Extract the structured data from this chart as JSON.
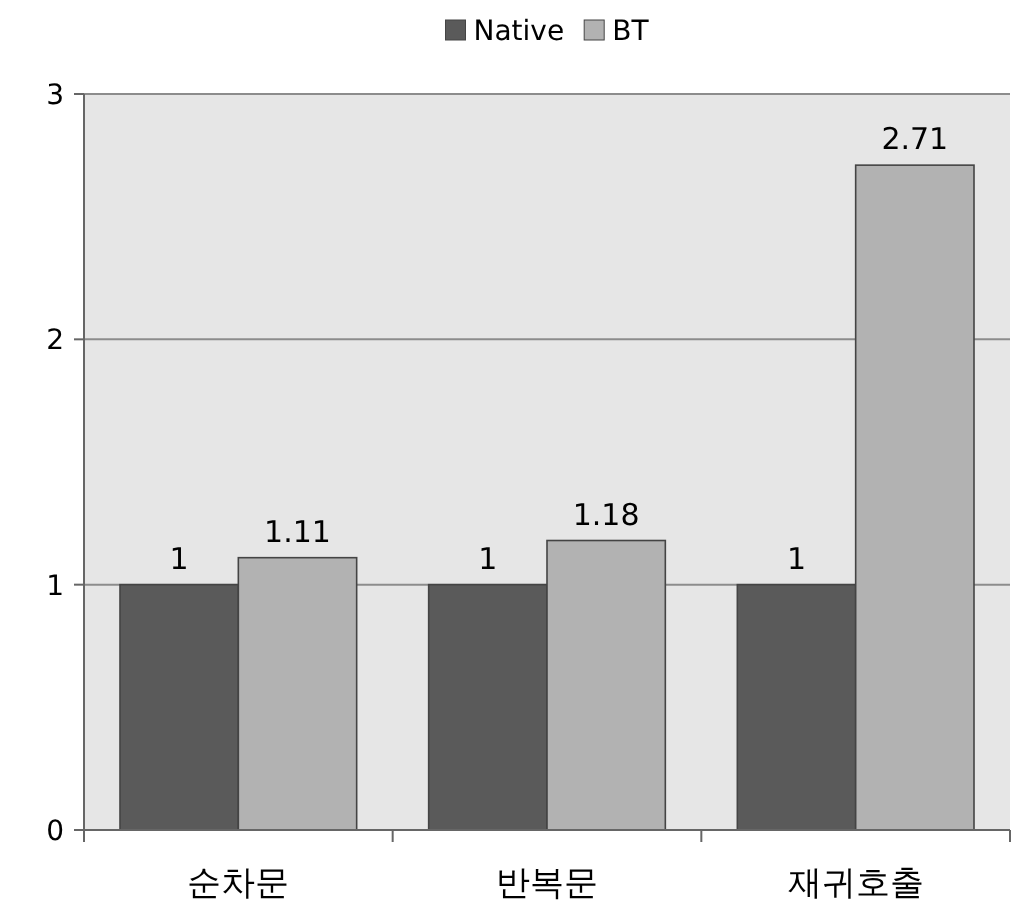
{
  "chart_data": {
    "type": "bar",
    "categories": [
      "순차문",
      "반복문",
      "재귀호출"
    ],
    "series": [
      {
        "name": "Native",
        "color": "#5a5a5a",
        "values": [
          1,
          1,
          1
        ]
      },
      {
        "name": "BT",
        "color": "#b2b2b2",
        "values": [
          1.11,
          1.18,
          2.71
        ]
      }
    ],
    "ylim": [
      0,
      3
    ],
    "yticks": [
      0,
      1,
      2,
      3
    ],
    "grid": "y",
    "legend": "top",
    "data_labels": true
  }
}
